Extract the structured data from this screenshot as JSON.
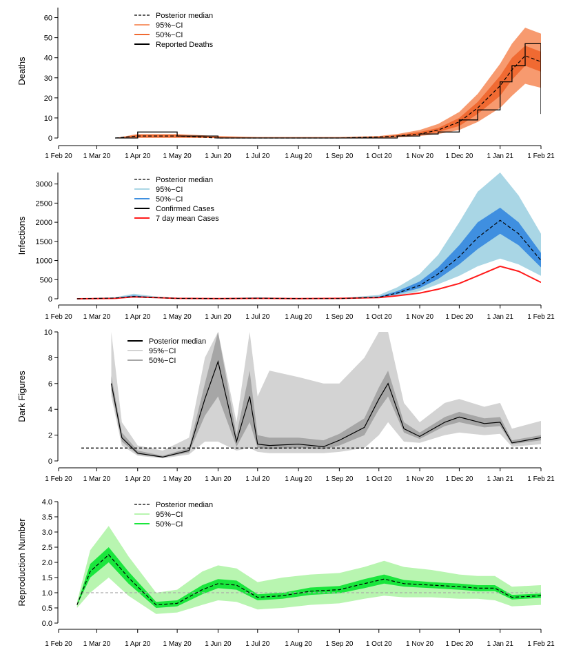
{
  "colors": {
    "deaths_ci95": "#f79a6f",
    "deaths_ci50": "#f06a32",
    "inf_ci95": "#a9d6e5",
    "inf_ci50": "#3f8fe0",
    "dark_ci95": "#d3d3d3",
    "dark_ci50": "#a6a6a6",
    "r_ci95": "#b8f5b0",
    "r_ci50": "#19e63c",
    "seven_day": "#ff1a1a",
    "black": "#000000"
  },
  "x_ticks": [
    "1 Feb 20",
    "1 Mar 20",
    "1 Apr 20",
    "1 May 20",
    "1 Jun 20",
    "1 Jul 20",
    "1 Aug 20",
    "1 Sep 20",
    "1 Oct 20",
    "1 Nov 20",
    "1 Dec 20",
    "1 Jan 21",
    "1 Feb 21"
  ],
  "chart_data": [
    {
      "type": "line",
      "ylabel": "Deaths",
      "ylim": [
        0,
        65
      ],
      "yticks": [
        "0",
        "10",
        "20",
        "30",
        "40",
        "50",
        "60"
      ],
      "legend": [
        "Posterior median",
        "95%−CI",
        "50%−CI",
        "Reported Deaths"
      ],
      "x": [
        "2020-03-15",
        "2020-04-01",
        "2020-05-01",
        "2020-06-01",
        "2020-07-01",
        "2020-08-01",
        "2020-09-01",
        "2020-10-01",
        "2020-10-15",
        "2020-11-01",
        "2020-11-15",
        "2020-12-01",
        "2020-12-15",
        "2021-01-01",
        "2021-01-10",
        "2021-01-20",
        "2021-02-01"
      ],
      "median": [
        0,
        1,
        1,
        0,
        0,
        0,
        0,
        0.5,
        1,
        2,
        4,
        8,
        15,
        26,
        34,
        41,
        38
      ],
      "ci95_low": [
        0,
        0,
        0,
        0,
        0,
        0,
        0,
        0,
        0.3,
        1,
        2,
        4,
        8,
        15,
        21,
        27,
        25
      ],
      "ci95_high": [
        0,
        2,
        2,
        1,
        0.5,
        0.5,
        0.5,
        1,
        2,
        4,
        7,
        13,
        22,
        37,
        47,
        55,
        52
      ],
      "ci50_low": [
        0,
        0.5,
        0.5,
        0,
        0,
        0,
        0,
        0.2,
        0.7,
        1.5,
        3,
        6,
        12,
        21,
        29,
        36,
        33
      ],
      "ci50_high": [
        0,
        1.5,
        1.5,
        0.5,
        0.2,
        0.2,
        0.2,
        0.7,
        1.4,
        3,
        5,
        10,
        18,
        31,
        40,
        46,
        43
      ],
      "reported": [
        0,
        3,
        1,
        0,
        0,
        0,
        0,
        0,
        1,
        2,
        3,
        9,
        14,
        28,
        36,
        47,
        12
      ]
    },
    {
      "type": "line",
      "ylabel": "Infections",
      "ylim": [
        0,
        3300
      ],
      "yticks": [
        "0",
        "500",
        "1000",
        "1500",
        "2000",
        "2500",
        "3000"
      ],
      "legend": [
        "Posterior median",
        "95%−CI",
        "50%−CI",
        "Confirmed Cases",
        "7 day mean Cases"
      ],
      "x": [
        "2020-02-15",
        "2020-03-15",
        "2020-03-29",
        "2020-04-15",
        "2020-05-01",
        "2020-06-01",
        "2020-07-01",
        "2020-08-01",
        "2020-09-01",
        "2020-10-01",
        "2020-10-15",
        "2020-11-01",
        "2020-11-15",
        "2020-12-01",
        "2020-12-15",
        "2021-01-01",
        "2021-01-15",
        "2021-02-01"
      ],
      "median": [
        0,
        20,
        60,
        30,
        10,
        5,
        15,
        5,
        5,
        40,
        150,
        350,
        650,
        1100,
        1600,
        2050,
        1700,
        1000
      ],
      "ci95_low": [
        0,
        5,
        30,
        15,
        5,
        2,
        5,
        2,
        2,
        20,
        80,
        200,
        380,
        600,
        850,
        1050,
        900,
        600
      ],
      "ci95_high": [
        0,
        40,
        130,
        60,
        20,
        15,
        40,
        15,
        15,
        100,
        300,
        650,
        1150,
        2000,
        2800,
        3300,
        2700,
        1700
      ],
      "ci50_low": [
        0,
        15,
        45,
        25,
        8,
        4,
        10,
        4,
        4,
        30,
        120,
        280,
        520,
        900,
        1300,
        1700,
        1400,
        820
      ],
      "ci50_high": [
        0,
        28,
        85,
        40,
        13,
        8,
        22,
        8,
        8,
        60,
        200,
        450,
        820,
        1400,
        2000,
        2380,
        2000,
        1200
      ],
      "seven_day_mean": [
        0,
        10,
        50,
        30,
        10,
        5,
        10,
        5,
        10,
        30,
        80,
        150,
        250,
        400,
        600,
        850,
        720,
        430
      ]
    },
    {
      "type": "line",
      "ylabel": "Dark Figures",
      "ylim": [
        0,
        10
      ],
      "yticks": [
        "0",
        "2",
        "4",
        "6",
        "8",
        "10"
      ],
      "legend": [
        "Posterior median",
        "95%−CI",
        "50%−CI"
      ],
      "reference_line": 1,
      "x": [
        "2020-03-12",
        "2020-03-20",
        "2020-04-01",
        "2020-04-20",
        "2020-05-10",
        "2020-05-22",
        "2020-06-01",
        "2020-06-15",
        "2020-06-25",
        "2020-07-01",
        "2020-07-10",
        "2020-08-01",
        "2020-08-20",
        "2020-09-01",
        "2020-09-20",
        "2020-10-01",
        "2020-10-08",
        "2020-10-20",
        "2020-11-01",
        "2020-11-20",
        "2020-12-01",
        "2020-12-20",
        "2021-01-01",
        "2021-01-10",
        "2021-02-01"
      ],
      "median": [
        6,
        1.8,
        0.6,
        0.3,
        0.8,
        4.8,
        7.7,
        1.5,
        5,
        1.3,
        1.2,
        1.3,
        1.1,
        1.6,
        2.6,
        4.8,
        6,
        2.5,
        1.9,
        3,
        3.4,
        2.9,
        3,
        1.4,
        1.8
      ],
      "ci95_low": [
        5,
        1.2,
        0.4,
        0.2,
        0.5,
        1.5,
        1.5,
        0.8,
        1,
        0.7,
        0.6,
        0.6,
        0.6,
        0.7,
        1,
        2,
        3,
        1.5,
        1.4,
        2,
        2.2,
        2,
        2.1,
        1.1,
        1.3
      ],
      "ci95_high": [
        10,
        3,
        1.2,
        0.8,
        1.8,
        8,
        10,
        3,
        10,
        5,
        7,
        6.5,
        6,
        6,
        8,
        10,
        10,
        4.5,
        3,
        4.5,
        4.8,
        4.2,
        4.5,
        2.5,
        3.1
      ],
      "ci50_low": [
        5.5,
        1.5,
        0.5,
        0.25,
        0.65,
        3.5,
        5,
        1.1,
        3,
        1,
        0.9,
        1,
        0.9,
        1.2,
        2,
        4,
        5,
        2.2,
        1.7,
        2.7,
        3,
        2.6,
        2.7,
        1.3,
        1.6
      ],
      "ci50_high": [
        6.6,
        2.2,
        0.8,
        0.4,
        1,
        6,
        10,
        2,
        7,
        2,
        1.8,
        1.8,
        1.6,
        2.1,
        3.3,
        5.7,
        7,
        3,
        2.2,
        3.4,
        3.8,
        3.3,
        3.4,
        1.6,
        2
      ]
    },
    {
      "type": "line",
      "ylabel": "Reproduction Number",
      "ylim": [
        0,
        4
      ],
      "yticks": [
        "0.0",
        "0.5",
        "1.0",
        "1.5",
        "2.0",
        "2.5",
        "3.0",
        "3.5",
        "4.0"
      ],
      "legend": [
        "Posterior median",
        "95%−CI",
        "50%−CI"
      ],
      "reference_line": 1,
      "x": [
        "2020-02-15",
        "2020-02-25",
        "2020-03-10",
        "2020-03-25",
        "2020-04-15",
        "2020-05-01",
        "2020-05-20",
        "2020-06-01",
        "2020-06-15",
        "2020-07-01",
        "2020-07-20",
        "2020-08-10",
        "2020-09-01",
        "2020-09-20",
        "2020-10-05",
        "2020-10-20",
        "2020-11-10",
        "2020-12-01",
        "2020-12-15",
        "2020-12-28",
        "2021-01-10",
        "2021-02-01"
      ],
      "median": [
        0.6,
        1.7,
        2.25,
        1.5,
        0.6,
        0.65,
        1.1,
        1.3,
        1.25,
        0.85,
        0.9,
        1.05,
        1.1,
        1.3,
        1.45,
        1.3,
        1.25,
        1.2,
        1.15,
        1.15,
        0.85,
        0.9
      ],
      "ci95_low": [
        0.5,
        1.0,
        1.5,
        0.9,
        0.3,
        0.35,
        0.6,
        0.75,
        0.7,
        0.45,
        0.5,
        0.6,
        0.65,
        0.8,
        0.9,
        0.85,
        0.85,
        0.8,
        0.8,
        0.75,
        0.55,
        0.6
      ],
      "ci95_high": [
        0.7,
        2.4,
        3.2,
        2.2,
        1.0,
        1.1,
        1.7,
        1.9,
        1.8,
        1.35,
        1.5,
        1.6,
        1.65,
        1.85,
        2.05,
        1.85,
        1.75,
        1.6,
        1.55,
        1.55,
        1.2,
        1.25
      ],
      "ci50_low": [
        0.58,
        1.5,
        2.0,
        1.3,
        0.5,
        0.55,
        0.95,
        1.15,
        1.1,
        0.75,
        0.8,
        0.93,
        0.98,
        1.15,
        1.3,
        1.2,
        1.15,
        1.1,
        1.05,
        1.05,
        0.78,
        0.83
      ],
      "ci50_high": [
        0.62,
        1.95,
        2.5,
        1.7,
        0.7,
        0.75,
        1.25,
        1.45,
        1.4,
        0.95,
        1.0,
        1.17,
        1.22,
        1.45,
        1.6,
        1.42,
        1.35,
        1.3,
        1.25,
        1.25,
        0.93,
        0.97
      ]
    }
  ]
}
